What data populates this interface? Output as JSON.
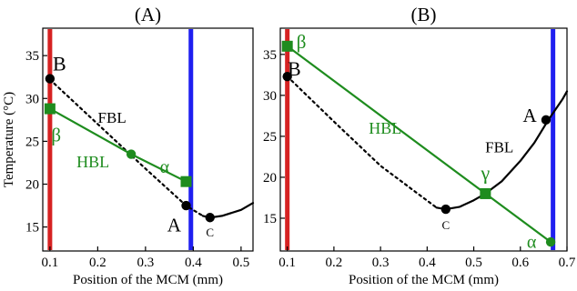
{
  "chart_data": [
    {
      "type": "line",
      "panel_label": "(A)",
      "xlabel": "Position of the MCM (mm)",
      "ylabel": "Temperature (°C)",
      "xlim": [
        0.085,
        0.525
      ],
      "ylim": [
        12.2,
        38.2
      ],
      "xticks": [
        0.1,
        0.2,
        0.3,
        0.4,
        0.5
      ],
      "xtick_labels": [
        "0.1",
        "0.2",
        "0.3",
        "0.4",
        "0.5"
      ],
      "yticks": [
        15,
        20,
        25,
        30,
        35
      ],
      "ytick_labels": [
        "15",
        "20",
        "25",
        "30",
        "35"
      ],
      "grid": false,
      "legend": "none",
      "colors": {
        "red": "#d62222",
        "blue": "#1f1ff0",
        "green": "#1e8c1e",
        "black": "#000000"
      },
      "vlines": [
        {
          "x": 0.1,
          "color": "#d62222"
        },
        {
          "x": 0.395,
          "color": "#1f1ff0"
        }
      ],
      "series": [
        {
          "style": "dotted",
          "color": "#000000",
          "x": [
            0.1,
            0.2,
            0.3,
            0.385,
            0.42
          ],
          "y": [
            32.2,
            27.0,
            21.8,
            17.5,
            16.3
          ]
        },
        {
          "style": "solid",
          "color": "#000000",
          "x": [
            0.42,
            0.435,
            0.46,
            0.5,
            0.525
          ],
          "y": [
            16.3,
            16.1,
            16.3,
            17.0,
            17.8
          ]
        },
        {
          "style": "solid",
          "color": "#1e8c1e",
          "x": [
            0.1,
            0.27,
            0.385
          ],
          "y": [
            28.8,
            23.5,
            20.3
          ]
        }
      ],
      "points": [
        {
          "x": 0.1,
          "y": 32.3,
          "color": "#000000",
          "marker": "circle"
        },
        {
          "x": 0.385,
          "y": 17.5,
          "color": "#000000",
          "marker": "circle"
        },
        {
          "x": 0.435,
          "y": 16.1,
          "color": "#000000",
          "marker": "circle"
        },
        {
          "x": 0.1,
          "y": 28.8,
          "color": "#1e8c1e",
          "marker": "square"
        },
        {
          "x": 0.27,
          "y": 23.5,
          "color": "#1e8c1e",
          "marker": "circle"
        },
        {
          "x": 0.385,
          "y": 20.3,
          "color": "#1e8c1e",
          "marker": "square"
        }
      ],
      "annotations": [
        {
          "text": "B",
          "x": 0.12,
          "y": 33.8,
          "color": "#000000",
          "size": 22
        },
        {
          "text": "FBL",
          "x": 0.23,
          "y": 27.6,
          "color": "#000000",
          "size": 17
        },
        {
          "text": "β",
          "x": 0.113,
          "y": 25.5,
          "color": "#1e8c1e",
          "size": 21
        },
        {
          "text": "HBL",
          "x": 0.19,
          "y": 22.4,
          "color": "#1e8c1e",
          "size": 18
        },
        {
          "text": "α",
          "x": 0.34,
          "y": 21.8,
          "color": "#1e8c1e",
          "size": 20
        },
        {
          "text": "A",
          "x": 0.36,
          "y": 15.0,
          "color": "#000000",
          "size": 21
        },
        {
          "text": "C",
          "x": 0.435,
          "y": 14.2,
          "color": "#000000",
          "size": 13
        }
      ]
    },
    {
      "type": "line",
      "panel_label": "(B)",
      "xlabel": "Position of the MCM (mm)",
      "ylabel": "",
      "xlim": [
        0.085,
        0.7
      ],
      "ylim": [
        11.0,
        38.2
      ],
      "xticks": [
        0.1,
        0.2,
        0.3,
        0.4,
        0.5,
        0.6,
        0.7
      ],
      "xtick_labels": [
        "0.1",
        "0.2",
        "0.3",
        "0.4",
        "0.5",
        "0.6",
        "0.7"
      ],
      "yticks": [
        15,
        20,
        25,
        30,
        35
      ],
      "ytick_labels": [
        "15",
        "20",
        "25",
        "30",
        "35"
      ],
      "grid": false,
      "legend": "none",
      "colors": {
        "red": "#d62222",
        "blue": "#1f1ff0",
        "green": "#1e8c1e",
        "black": "#000000"
      },
      "vlines": [
        {
          "x": 0.1,
          "color": "#d62222"
        },
        {
          "x": 0.67,
          "color": "#1f1ff0"
        }
      ],
      "series": [
        {
          "style": "dotted",
          "color": "#000000",
          "x": [
            0.1,
            0.2,
            0.3,
            0.42
          ],
          "y": [
            32.3,
            26.8,
            21.4,
            16.3
          ]
        },
        {
          "style": "solid",
          "color": "#000000",
          "x": [
            0.42,
            0.44,
            0.47,
            0.5,
            0.525,
            0.56,
            0.6,
            0.63,
            0.66,
            0.69,
            0.7
          ],
          "y": [
            16.3,
            16.1,
            16.4,
            17.2,
            18.0,
            19.5,
            22.0,
            24.2,
            27.0,
            29.5,
            30.5
          ]
        },
        {
          "style": "solid",
          "color": "#1e8c1e",
          "x": [
            0.1,
            0.525,
            0.665
          ],
          "y": [
            36.0,
            18.0,
            12.1
          ]
        }
      ],
      "points": [
        {
          "x": 0.1,
          "y": 32.3,
          "color": "#000000",
          "marker": "circle"
        },
        {
          "x": 0.44,
          "y": 16.1,
          "color": "#000000",
          "marker": "circle"
        },
        {
          "x": 0.655,
          "y": 27.0,
          "color": "#000000",
          "marker": "circle"
        },
        {
          "x": 0.1,
          "y": 36.0,
          "color": "#1e8c1e",
          "marker": "square"
        },
        {
          "x": 0.525,
          "y": 18.0,
          "color": "#1e8c1e",
          "marker": "square"
        },
        {
          "x": 0.665,
          "y": 12.1,
          "color": "#1e8c1e",
          "marker": "circle"
        }
      ],
      "annotations": [
        {
          "text": "β",
          "x": 0.13,
          "y": 36.3,
          "color": "#1e8c1e",
          "size": 21
        },
        {
          "text": "B",
          "x": 0.115,
          "y": 33.0,
          "color": "#000000",
          "size": 22
        },
        {
          "text": "HBL",
          "x": 0.31,
          "y": 25.8,
          "color": "#1e8c1e",
          "size": 18
        },
        {
          "text": "A",
          "x": 0.62,
          "y": 27.3,
          "color": "#000000",
          "size": 21
        },
        {
          "text": "FBL",
          "x": 0.555,
          "y": 23.5,
          "color": "#000000",
          "size": 17
        },
        {
          "text": "γ",
          "x": 0.525,
          "y": 20.3,
          "color": "#1e8c1e",
          "size": 22
        },
        {
          "text": "C",
          "x": 0.44,
          "y": 14.0,
          "color": "#000000",
          "size": 13
        },
        {
          "text": "α",
          "x": 0.624,
          "y": 11.9,
          "color": "#1e8c1e",
          "size": 20
        }
      ]
    }
  ]
}
